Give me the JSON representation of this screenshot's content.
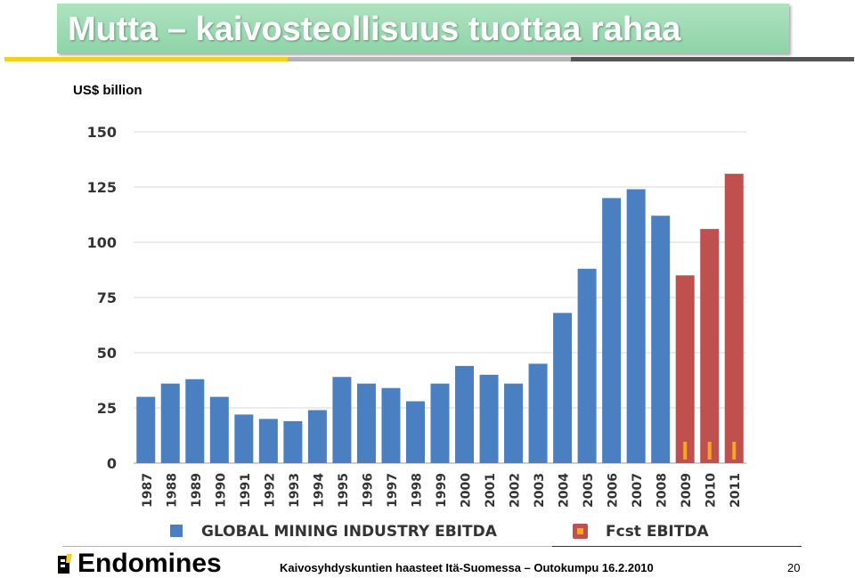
{
  "slide": {
    "title": "Mutta – kaivosteollisuus tuottaa rahaa",
    "unit_label": "US$ billion",
    "accent_colors": {
      "yellow": "#f2d21f",
      "gray": "#b3b3b3",
      "dark": "#555555",
      "title_bg": "#9edbb4"
    }
  },
  "chart_data": {
    "type": "bar",
    "categories": [
      "1987",
      "1988",
      "1989",
      "1990",
      "1991",
      "1992",
      "1993",
      "1994",
      "1995",
      "1996",
      "1997",
      "1998",
      "1999",
      "2000",
      "2001",
      "2002",
      "2003",
      "2004",
      "2005",
      "2006",
      "2007",
      "2008",
      "2009",
      "2010",
      "2011"
    ],
    "series": [
      {
        "name": "GLOBAL MINING INDUSTRY EBITDA",
        "color": "#4a7fc1",
        "values": [
          30,
          36,
          38,
          30,
          22,
          20,
          19,
          24,
          39,
          36,
          34,
          28,
          36,
          44,
          40,
          36,
          45,
          68,
          88,
          120,
          124,
          112,
          null,
          null,
          null
        ]
      },
      {
        "name": "Fcst EBITDA",
        "color": "#c0504d",
        "marker_color": "#f5a623",
        "values": [
          null,
          null,
          null,
          null,
          null,
          null,
          null,
          null,
          null,
          null,
          null,
          null,
          null,
          null,
          null,
          null,
          null,
          null,
          null,
          null,
          null,
          null,
          85,
          106,
          131
        ]
      }
    ],
    "ylim": [
      0,
      150
    ],
    "yticks": [
      "0",
      "25",
      "50",
      "75",
      "100",
      "125",
      "150"
    ],
    "ytick_values": [
      0,
      25,
      50,
      75,
      100,
      125,
      150
    ],
    "grid": true,
    "legend_placement": "bottom"
  },
  "footer": {
    "logo_text": "Endomines",
    "caption": "Kaivosyhdyskuntien haasteet Itä-Suomessa – Outokumpu 16.2.2010",
    "page_number": "20"
  }
}
